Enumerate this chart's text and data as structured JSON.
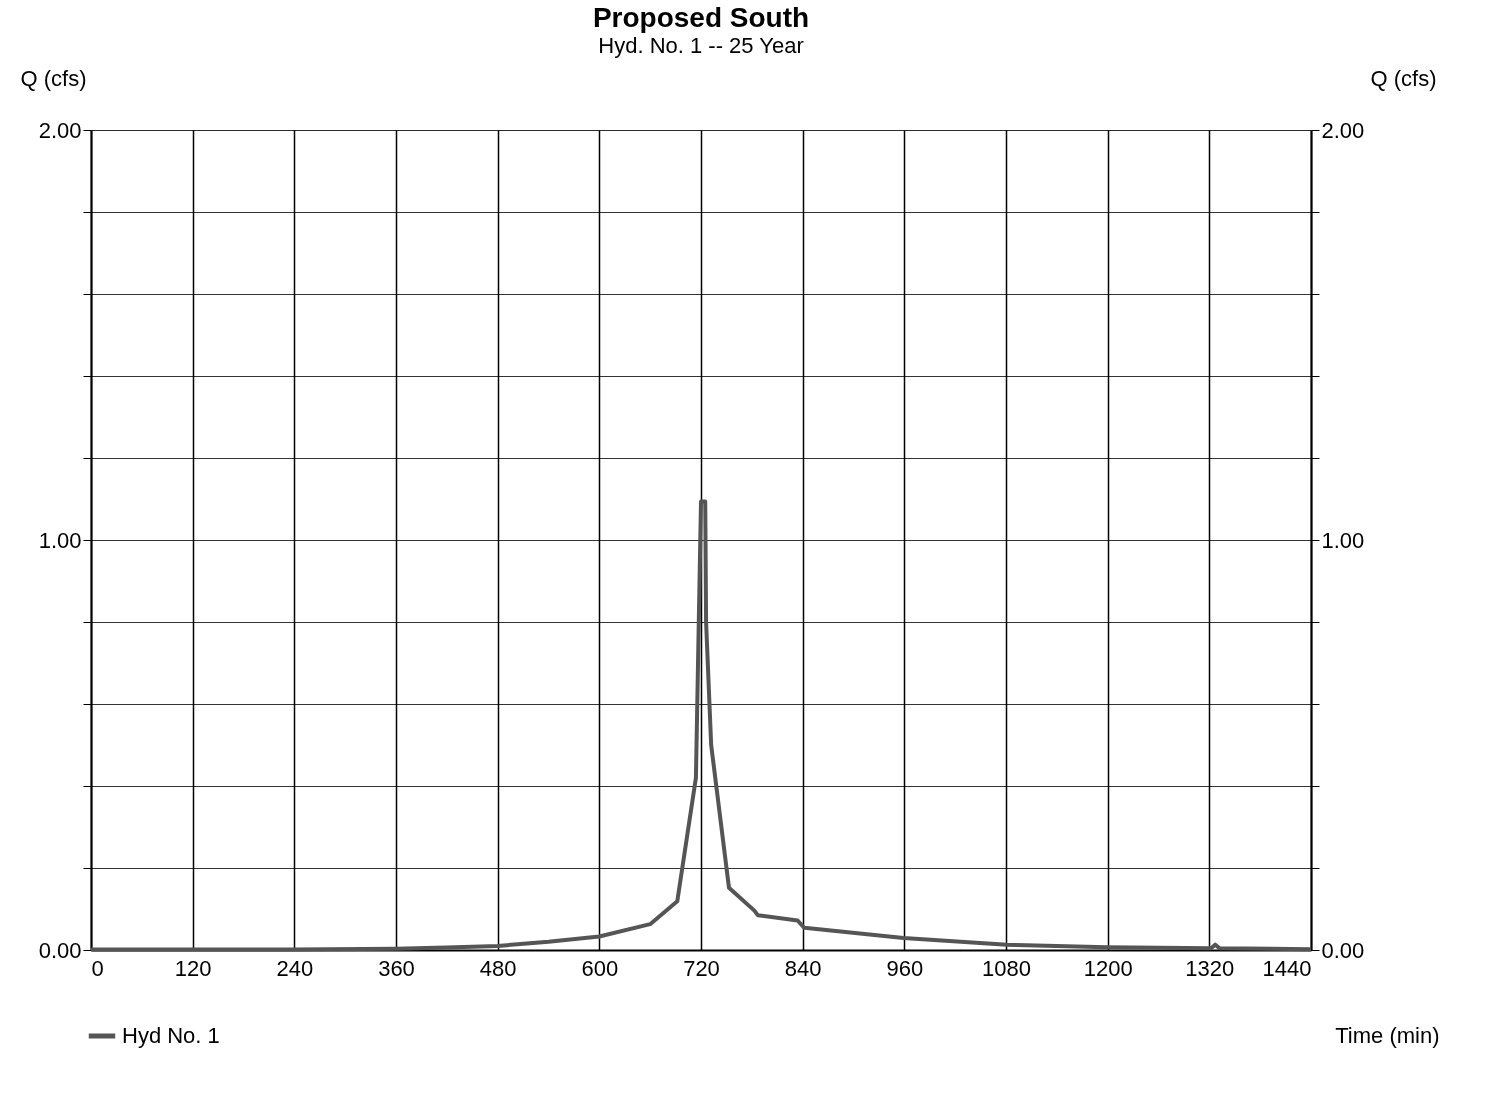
{
  "chart_data": {
    "type": "line",
    "title": "Proposed South",
    "subtitle": "Hyd. No. 1 -- 25 Year",
    "xlabel": "Time (min)",
    "ylabel": "Q (cfs)",
    "y2label": "Q (cfs)",
    "xlim": [
      0,
      1440
    ],
    "xticks": [
      0,
      120,
      240,
      360,
      480,
      600,
      720,
      840,
      960,
      1080,
      1200,
      1320,
      1440
    ],
    "ylim": [
      0,
      2
    ],
    "yticks": [
      {
        "value": 0,
        "label": "0.00"
      },
      {
        "value": 0.2,
        "label": null
      },
      {
        "value": 0.4,
        "label": null
      },
      {
        "value": 0.6,
        "label": null
      },
      {
        "value": 0.8,
        "label": null
      },
      {
        "value": 1,
        "label": "1.00"
      },
      {
        "value": 1.2,
        "label": null
      },
      {
        "value": 1.4,
        "label": null
      },
      {
        "value": 1.6,
        "label": null
      },
      {
        "value": 1.8,
        "label": null
      },
      {
        "value": 2,
        "label": "2.00"
      }
    ],
    "y2lim": [
      0,
      2
    ],
    "y2ticks": [
      {
        "value": 0,
        "label": "0.00"
      },
      {
        "value": 0.2,
        "label": null
      },
      {
        "value": 0.4,
        "label": null
      },
      {
        "value": 0.6,
        "label": null
      },
      {
        "value": 0.8,
        "label": null
      },
      {
        "value": 1,
        "label": "1.00"
      },
      {
        "value": 1.2,
        "label": null
      },
      {
        "value": 1.4,
        "label": null
      },
      {
        "value": 1.6,
        "label": null
      },
      {
        "value": 1.8,
        "label": null
      },
      {
        "value": 2,
        "label": "2.00"
      }
    ],
    "grid": true,
    "legend": "bottom left",
    "marker": "none",
    "line_style": "solid",
    "series": [
      {
        "name": "Hyd No. 1",
        "color": "#555555",
        "x": [
          0,
          240,
          360,
          420,
          480,
          540,
          600,
          660,
          692,
          714,
          720,
          725,
          726,
          732,
          753,
          783,
          787,
          834,
          842,
          959,
          1081,
          1199,
          1322,
          1327,
          1332,
          1440
        ],
        "values": [
          0.001,
          0.001,
          0.003,
          0.006,
          0.01,
          0.02,
          0.033,
          0.063,
          0.119,
          0.42,
          1.094,
          1.094,
          0.8,
          0.5,
          0.152,
          0.096,
          0.085,
          0.072,
          0.054,
          0.029,
          0.013,
          0.007,
          0.004,
          0.013,
          0.004,
          0.002
        ]
      }
    ]
  }
}
